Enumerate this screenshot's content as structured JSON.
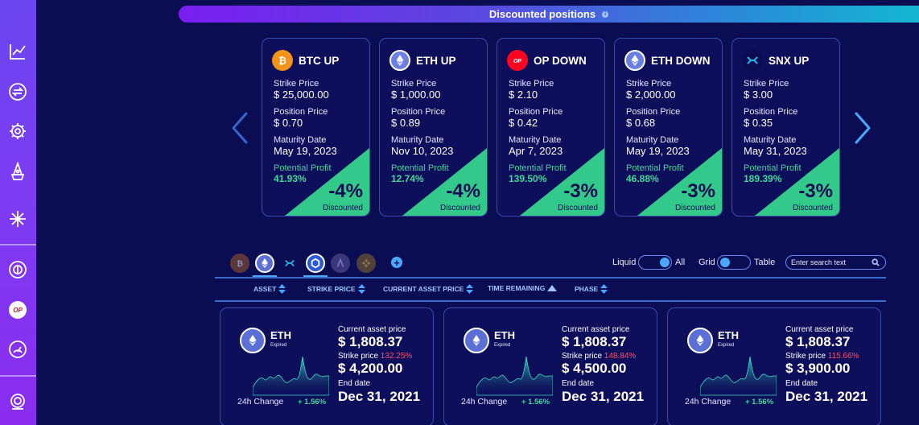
{
  "header": {
    "title": "Discounted positions",
    "info": "i"
  },
  "sidebar": {
    "icons": [
      "chart-icon",
      "swap-icon",
      "gear-icon",
      "wizard-icon",
      "snowflake-icon",
      "coin-icon",
      "op-icon",
      "speedometer-icon",
      "portal-icon"
    ],
    "op_text": "OP"
  },
  "carousel": {
    "cards": [
      {
        "title": "BTC UP",
        "icon": "btc-icon",
        "strike_label": "Strike Price",
        "strike": "$ 25,000.00",
        "position_label": "Position Price",
        "position": "$ 0.70",
        "maturity_label": "Maturity Date",
        "maturity": "May 19, 2023",
        "profit_label": "Potential Profit",
        "profit": "41.93%",
        "discount": "-4%",
        "discount_label": "Discounted"
      },
      {
        "title": "ETH UP",
        "icon": "eth-icon",
        "strike_label": "Strike Price",
        "strike": "$ 1,000.00",
        "position_label": "Position Price",
        "position": "$ 0.89",
        "maturity_label": "Maturity Date",
        "maturity": "Nov 10, 2023",
        "profit_label": "Potential Profit",
        "profit": "12.74%",
        "discount": "-4%",
        "discount_label": "Discounted"
      },
      {
        "title": "OP DOWN",
        "icon": "op-icon",
        "strike_label": "Strike Price",
        "strike": "$ 2.10",
        "position_label": "Position Price",
        "position": "$ 0.42",
        "maturity_label": "Maturity Date",
        "maturity": "Apr 7, 2023",
        "profit_label": "Potential Profit",
        "profit": "139.50%",
        "discount": "-3%",
        "discount_label": "Discounted"
      },
      {
        "title": "ETH DOWN",
        "icon": "eth-icon",
        "strike_label": "Strike Price",
        "strike": "$ 2,000.00",
        "position_label": "Position Price",
        "position": "$ 0.68",
        "maturity_label": "Maturity Date",
        "maturity": "May 19, 2023",
        "profit_label": "Potential Profit",
        "profit": "46.88%",
        "discount": "-3%",
        "discount_label": "Discounted"
      },
      {
        "title": "SNX UP",
        "icon": "snx-icon",
        "strike_label": "Strike Price",
        "strike": "$ 3.00",
        "position_label": "Position Price",
        "position": "$ 0.35",
        "maturity_label": "Maturity Date",
        "maturity": "May 31, 2023",
        "profit_label": "Potential Profit",
        "profit": "189.39%",
        "discount": "-3%",
        "discount_label": "Discounted"
      }
    ]
  },
  "filters": {
    "asset_chips": [
      "btc-icon",
      "eth-icon",
      "snx-icon",
      "link-icon",
      "aave-icon",
      "bnb-icon"
    ],
    "add_label": "+",
    "liquid_label": "Liquid",
    "all_label": "All",
    "grid_label": "Grid",
    "table_label": "Table",
    "search_placeholder": "Enter search text"
  },
  "sort_headers": [
    "ASSET",
    "STRIKE PRICE",
    "CURRENT ASSET PRICE",
    "TIME REMAINING",
    "PHASE"
  ],
  "positions": [
    {
      "asset": "ETH",
      "status": "Expired",
      "change_label": "24h Change",
      "change": "+ 1.56%",
      "current_label": "Current asset price",
      "current": "$ 1,808.37",
      "strike_label": "Strike price",
      "strike_pct": "132.25%",
      "strike": "$ 4,200.00",
      "end_label": "End date",
      "end": "Dec 31, 2021"
    },
    {
      "asset": "ETH",
      "status": "Expired",
      "change_label": "24h Change",
      "change": "+ 1.56%",
      "current_label": "Current asset price",
      "current": "$ 1,808.37",
      "strike_label": "Strike price",
      "strike_pct": "148.84%",
      "strike": "$ 4,500.00",
      "end_label": "End date",
      "end": "Dec 31, 2021"
    },
    {
      "asset": "ETH",
      "status": "Expired",
      "change_label": "24h Change",
      "change": "+ 1.56%",
      "current_label": "Current asset price",
      "current": "$ 1,808.37",
      "strike_label": "Strike price",
      "strike_pct": "115.66%",
      "strike": "$ 3,900.00",
      "end_label": "End date",
      "end": "Dec 31, 2021"
    }
  ],
  "colors": {
    "background": "#0b0d52",
    "accent": "#4aa8ff",
    "profit": "#3fd79a",
    "loss": "#ff4d6d"
  }
}
